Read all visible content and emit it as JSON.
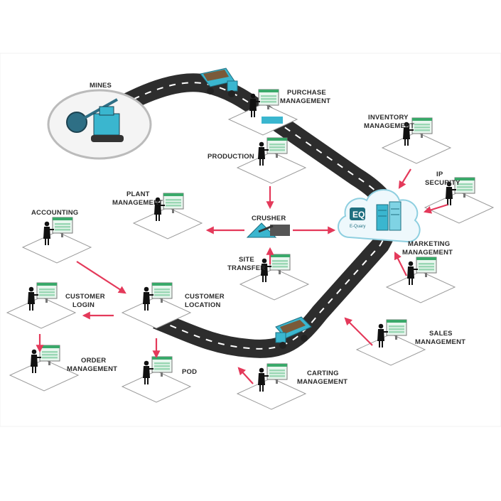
{
  "nodes": {
    "mines": "MINES",
    "purchase": [
      "PURCHASE",
      "MANAGEMENT"
    ],
    "inventory": [
      "INVENTORY",
      "MANAGEMENT"
    ],
    "production": "PRODUCTION",
    "ip_security": [
      "IP",
      "SECURITY"
    ],
    "plant": [
      "PLANT",
      "MANAGEMENT"
    ],
    "crusher": "CRUSHER",
    "accounting": "ACCOUNTING",
    "marketing": [
      "MARKETING",
      "MANAGEMENT"
    ],
    "site_transfer": [
      "SITE",
      "TRANSFER"
    ],
    "customer_login": [
      "CUSTOMER",
      "LOGIN"
    ],
    "customer_location": [
      "CUSTOMER",
      "LOCATION"
    ],
    "sales": [
      "SALES",
      "MANAGEMENT"
    ],
    "order": [
      "ORDER",
      "MANAGEMENT"
    ],
    "pod": "POD",
    "carting": [
      "CARTING",
      "MANAGEMENT"
    ]
  },
  "hub": {
    "logo_text": "E-Quary"
  },
  "colors": {
    "road": "#2d2d2d",
    "accent": "#e4395a",
    "truck": "#3ab6cf",
    "cloud": "#eef8fc"
  }
}
